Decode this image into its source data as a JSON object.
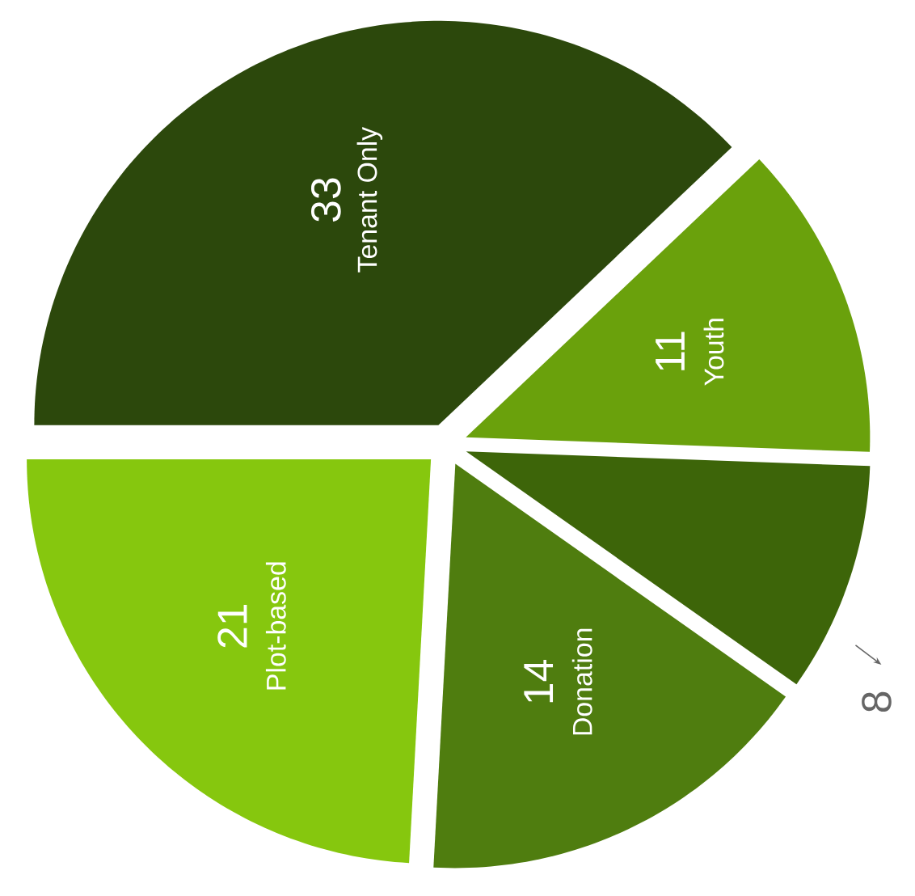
{
  "chart_data": {
    "type": "pie",
    "categories": [
      "Tenant Only",
      "Youth",
      null,
      "Donation",
      "Plot-based"
    ],
    "values": [
      33,
      11,
      8,
      14,
      21
    ],
    "colors": [
      "#2c480c",
      "#6aa10c",
      "#3d6509",
      "#4f7d0f",
      "#86c70e"
    ],
    "data_labels": true
  }
}
